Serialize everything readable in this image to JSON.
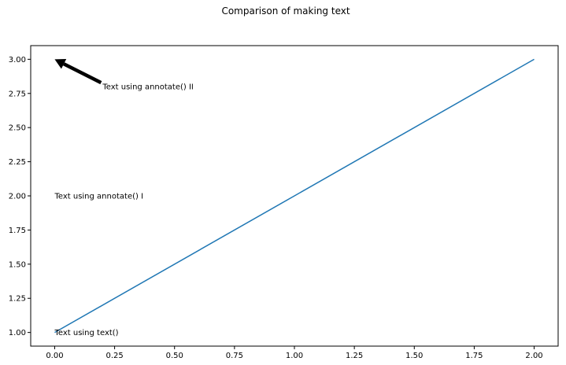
{
  "chart_data": {
    "type": "line",
    "title": "Comparison of making text",
    "xlabel": "",
    "ylabel": "",
    "xlim": [
      -0.1,
      2.1
    ],
    "ylim": [
      0.9,
      3.1
    ],
    "x_ticks": [
      0.0,
      0.25,
      0.5,
      0.75,
      1.0,
      1.25,
      1.5,
      1.75,
      2.0
    ],
    "x_tick_labels": [
      "0.00",
      "0.25",
      "0.50",
      "0.75",
      "1.00",
      "1.25",
      "1.50",
      "1.75",
      "2.00"
    ],
    "y_ticks": [
      1.0,
      1.25,
      1.5,
      1.75,
      2.0,
      2.25,
      2.5,
      2.75,
      3.0
    ],
    "y_tick_labels": [
      "1.00",
      "1.25",
      "1.50",
      "1.75",
      "2.00",
      "2.25",
      "2.50",
      "2.75",
      "3.00"
    ],
    "grid": false,
    "series": [
      {
        "x": [
          0,
          2
        ],
        "y": [
          1,
          3
        ],
        "color": "#1f77b4"
      }
    ],
    "annotations": [
      {
        "text": "Text using text()",
        "x": 0.0,
        "y": 1.0,
        "arrow": false
      },
      {
        "text": "Text using annotate() I",
        "x": 0.0,
        "y": 2.0,
        "arrow": false
      },
      {
        "text": "Text using annotate() II",
        "x": 0.2,
        "y": 2.8,
        "arrow": true,
        "arrow_target": [
          0.0,
          3.0
        ],
        "arrow_color": "#000000"
      }
    ]
  }
}
